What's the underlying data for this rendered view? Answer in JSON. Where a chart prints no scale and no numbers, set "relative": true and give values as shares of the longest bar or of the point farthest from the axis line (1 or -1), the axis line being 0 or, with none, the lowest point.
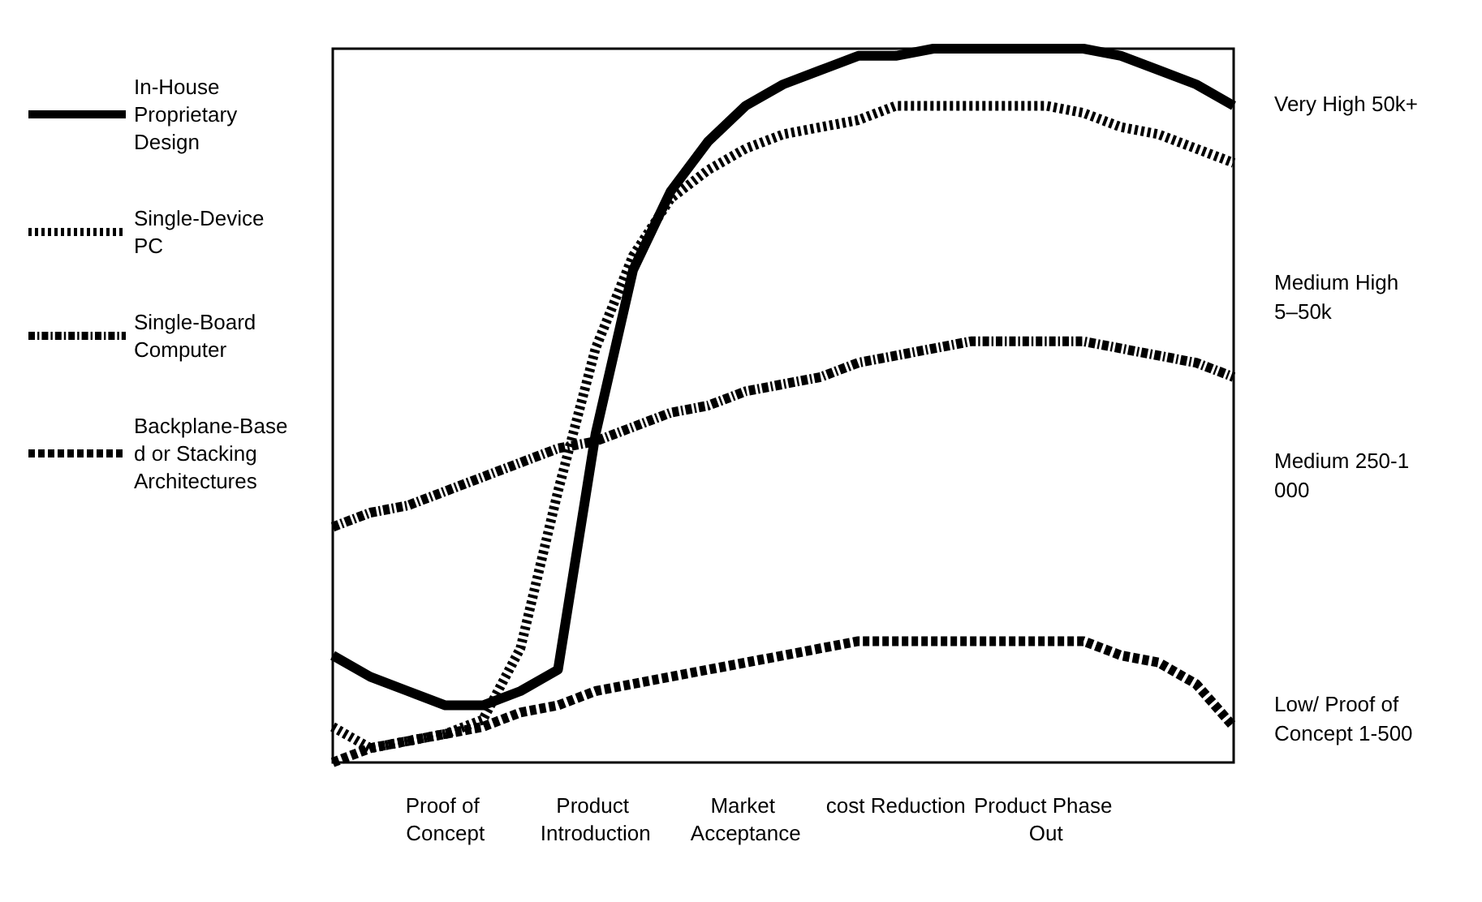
{
  "chart_data": {
    "type": "line",
    "relative": true,
    "legend": "left",
    "grid": false,
    "marker": "none",
    "categories": [
      null,
      null,
      null,
      "Proof of Concept",
      null,
      null,
      null,
      "Product Introduction",
      null,
      null,
      null,
      "Market Acceptance",
      null,
      null,
      null,
      "cost Reduction",
      null,
      null,
      null,
      "Product Phase Out",
      null,
      null,
      null,
      null,
      null
    ],
    "series": [
      {
        "name": "In-House Proprietary Design",
        "color": "#000000",
        "line_style": "solid",
        "values": [
          0.15,
          0.12,
          0.1,
          0.08,
          0.08,
          0.1,
          0.13,
          0.46,
          0.69,
          0.8,
          0.87,
          0.92,
          0.95,
          0.97,
          0.99,
          0.99,
          1.0,
          1.0,
          1.0,
          1.0,
          1.0,
          0.99,
          0.97,
          0.95,
          0.92
        ]
      },
      {
        "name": "Single-Device PC",
        "color": "#000000",
        "line_style": "dotted",
        "values": [
          0.05,
          0.02,
          0.03,
          0.04,
          0.06,
          0.16,
          0.38,
          0.58,
          0.71,
          0.79,
          0.83,
          0.86,
          0.88,
          0.89,
          0.9,
          0.92,
          0.92,
          0.92,
          0.92,
          0.92,
          0.91,
          0.89,
          0.88,
          0.86,
          0.84
        ]
      },
      {
        "name": "Single-Board Computer",
        "color": "#000000",
        "line_style": "dashdot",
        "values": [
          0.33,
          0.35,
          0.36,
          0.38,
          0.4,
          0.42,
          0.44,
          0.45,
          0.47,
          0.49,
          0.5,
          0.52,
          0.53,
          0.54,
          0.56,
          0.57,
          0.58,
          0.59,
          0.59,
          0.59,
          0.59,
          0.58,
          0.57,
          0.56,
          0.54
        ]
      },
      {
        "name": "Backplane-Based or Stacking Architectures",
        "color": "#000000",
        "line_style": "dashed",
        "values": [
          0,
          0.02,
          0.03,
          0.04,
          0.05,
          0.07,
          0.08,
          0.1,
          0.11,
          0.12,
          0.13,
          0.14,
          0.15,
          0.16,
          0.17,
          0.17,
          0.17,
          0.17,
          0.17,
          0.17,
          0.17,
          0.15,
          0.14,
          0.11,
          0.05
        ]
      }
    ],
    "annotations": [
      "Very High 50k+",
      "Medium High 5–50k",
      "Medium 250-1 000",
      "Low/ Proof of Concept 1-500"
    ]
  }
}
